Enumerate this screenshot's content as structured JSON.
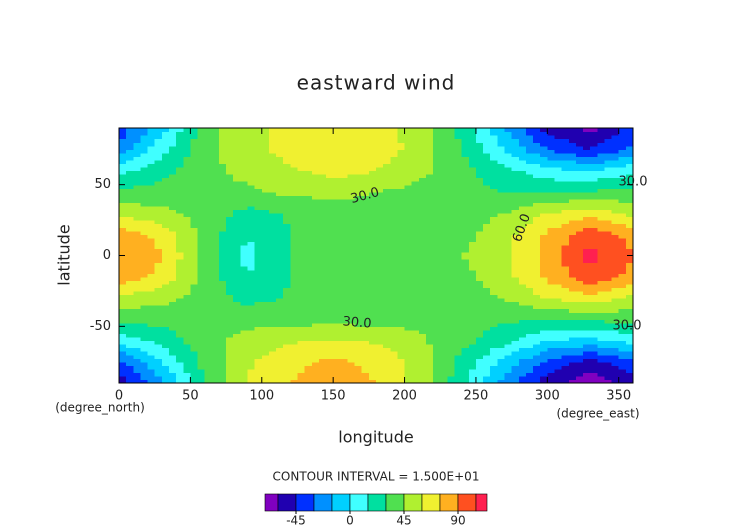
{
  "chart_data": {
    "type": "contour",
    "title": "eastward wind",
    "xlabel": "longitude",
    "ylabel": "latitude",
    "x_unit": "(degree_east)",
    "y_unit": "(degree_north)",
    "note": "CONTOUR INTERVAL = 1.500E+01",
    "x": [
      0,
      30,
      60,
      90,
      120,
      150,
      180,
      210,
      240,
      270,
      300,
      330,
      360
    ],
    "y": [
      -90,
      -75,
      -60,
      -45,
      -30,
      -15,
      0,
      15,
      30,
      45,
      60,
      75,
      90
    ],
    "z": [
      [
        -55,
        -20,
        30,
        60,
        75,
        80,
        75,
        55,
        20,
        -20,
        -55,
        -70,
        -55
      ],
      [
        -35,
        0,
        35,
        58,
        72,
        78,
        72,
        55,
        25,
        -5,
        -35,
        -50,
        -35
      ],
      [
        5,
        20,
        40,
        50,
        58,
        62,
        58,
        48,
        35,
        20,
        0,
        -5,
        5
      ],
      [
        35,
        35,
        38,
        40,
        40,
        40,
        40,
        40,
        38,
        32,
        30,
        32,
        35
      ],
      [
        55,
        50,
        38,
        25,
        32,
        35,
        38,
        40,
        38,
        45,
        60,
        70,
        55
      ],
      [
        85,
        70,
        40,
        15,
        30,
        38,
        40,
        40,
        40,
        55,
        78,
        100,
        85
      ],
      [
        90,
        75,
        40,
        10,
        30,
        40,
        40,
        40,
        45,
        55,
        80,
        110,
        90
      ],
      [
        85,
        70,
        40,
        15,
        30,
        38,
        40,
        40,
        40,
        55,
        78,
        100,
        85
      ],
      [
        55,
        50,
        38,
        25,
        32,
        35,
        38,
        40,
        38,
        45,
        60,
        70,
        55
      ],
      [
        35,
        35,
        40,
        42,
        48,
        50,
        45,
        40,
        35,
        30,
        30,
        32,
        35
      ],
      [
        10,
        25,
        40,
        50,
        58,
        65,
        60,
        50,
        35,
        20,
        5,
        0,
        10
      ],
      [
        -25,
        10,
        40,
        55,
        65,
        70,
        68,
        55,
        30,
        0,
        -30,
        -45,
        -25
      ],
      [
        -40,
        -5,
        38,
        55,
        65,
        68,
        65,
        55,
        25,
        -15,
        -50,
        -65,
        -40
      ]
    ],
    "xlim": [
      0,
      360
    ],
    "ylim": [
      -90,
      90
    ],
    "xticks": [
      0,
      50,
      100,
      150,
      200,
      250,
      300,
      350
    ],
    "yticks": [
      -50,
      0,
      50
    ],
    "levels": [
      -60,
      -45,
      -30,
      -15,
      0,
      15,
      30,
      45,
      60,
      75,
      90,
      105
    ],
    "colors": [
      "#8000c0",
      "#2000b0",
      "#0030ff",
      "#0090ff",
      "#00d0ff",
      "#40ffff",
      "#00e0a0",
      "#50e050",
      "#b0f030",
      "#f0f030",
      "#ffb020",
      "#ff5020",
      "#ff2050"
    ],
    "colorbar_ticks": [
      -45,
      0,
      45,
      90
    ],
    "contour_labels": [
      "30.0",
      "30.0",
      "60.0",
      "30.0",
      "30.0"
    ]
  }
}
